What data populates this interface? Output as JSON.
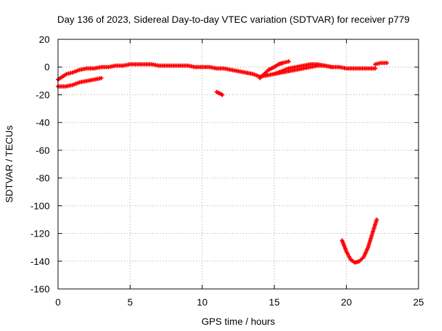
{
  "chart_data": {
    "type": "scatter",
    "title": "Day 136 of 2023, Sidereal Day-to-day VTEC variation (SDTVAR) for receiver p779",
    "xlabel": "GPS time / hours",
    "ylabel": "SDTVAR / TECUs",
    "xlim": [
      0,
      25
    ],
    "ylim": [
      -160,
      20
    ],
    "xticks": [
      0,
      5,
      10,
      15,
      20,
      25
    ],
    "yticks": [
      20,
      0,
      -20,
      -40,
      -60,
      -80,
      -100,
      -120,
      -140,
      -160
    ],
    "grid": true,
    "marker": "+",
    "series": [
      {
        "name": "SDTVAR",
        "color": "#ff0000",
        "tracks": [
          {
            "x": [
              0.0,
              0.3,
              0.6,
              1.0,
              1.5,
              2.0,
              2.5,
              3.0,
              3.5,
              4.0,
              4.5,
              5.0,
              5.5,
              6.0,
              6.5,
              7.0,
              7.5,
              8.0,
              8.5,
              9.0,
              9.5,
              10.0,
              10.5,
              11.0,
              11.5,
              12.0,
              12.5,
              13.0,
              13.5,
              14.0,
              14.5,
              15.0,
              15.5,
              16.0,
              16.5,
              17.0,
              17.5,
              18.0,
              18.5,
              19.0,
              19.5,
              20.0,
              20.5,
              21.0,
              21.5,
              22.0
            ],
            "y": [
              -9,
              -7,
              -5,
              -4,
              -2,
              -1,
              -1,
              0,
              0,
              1,
              1,
              2,
              2,
              2,
              2,
              1,
              1,
              1,
              1,
              1,
              0,
              0,
              0,
              -1,
              -1,
              -2,
              -3,
              -4,
              -5,
              -7,
              -6,
              -5,
              -4,
              -3,
              -2,
              -1,
              0,
              1,
              1,
              0,
              0,
              -1,
              -1,
              -1,
              -1,
              -1
            ]
          },
          {
            "x": [
              14.0,
              14.3,
              14.6,
              15.0,
              15.3,
              15.6,
              16.0
            ],
            "y": [
              -8,
              -5,
              -2,
              0,
              2,
              3,
              4
            ]
          },
          {
            "x": [
              15.0,
              15.5,
              16.0,
              16.5,
              17.0,
              17.5,
              18.0,
              18.5,
              19.0
            ],
            "y": [
              -5,
              -3,
              -1,
              0,
              1,
              2,
              2,
              1,
              0
            ]
          },
          {
            "x": [
              22.0,
              22.4,
              22.8
            ],
            "y": [
              2,
              3,
              3
            ]
          },
          {
            "x": [
              0.0,
              0.5,
              1.0,
              1.5,
              2.0,
              2.5,
              3.0
            ],
            "y": [
              -14,
              -14,
              -13,
              -11,
              -10,
              -9,
              -8
            ]
          },
          {
            "x": [
              11.0,
              11.2,
              11.4
            ],
            "y": [
              -18,
              -19,
              -20
            ]
          },
          {
            "x": [
              19.7,
              20.0,
              20.3,
              20.6,
              20.9,
              21.2,
              21.5,
              21.8,
              22.1
            ],
            "y": [
              -125,
              -133,
              -139,
              -141,
              -140,
              -137,
              -130,
              -120,
              -110
            ]
          }
        ]
      }
    ]
  }
}
